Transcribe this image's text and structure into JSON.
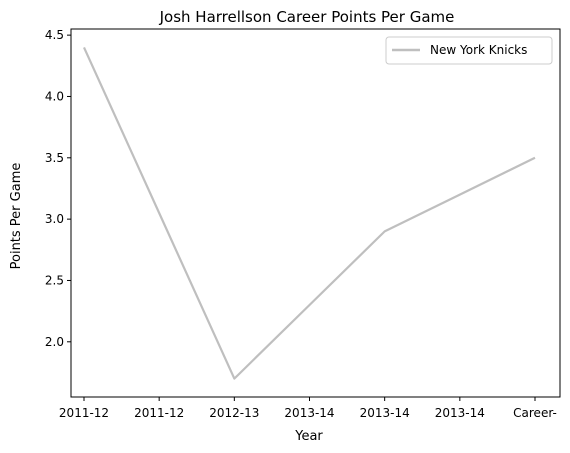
{
  "chart_data": {
    "type": "line",
    "title": "Josh Harrellson Career Points Per Game",
    "xlabel": "Year",
    "ylabel": "Points Per Game",
    "categories": [
      "2011-12",
      "2011-12",
      "2012-13",
      "2013-14",
      "2013-14",
      "2013-14",
      "Career-"
    ],
    "series": [
      {
        "name": "New York Knicks",
        "color": "#bfbfbf",
        "values": [
          4.4,
          3.05,
          1.7,
          2.3,
          2.9,
          3.2,
          3.5
        ]
      }
    ],
    "ylim": [
      1.55,
      4.55
    ],
    "yticks": [
      2.0,
      2.5,
      3.0,
      3.5,
      4.0,
      4.5
    ],
    "grid": false,
    "legend_position": "top-right"
  }
}
